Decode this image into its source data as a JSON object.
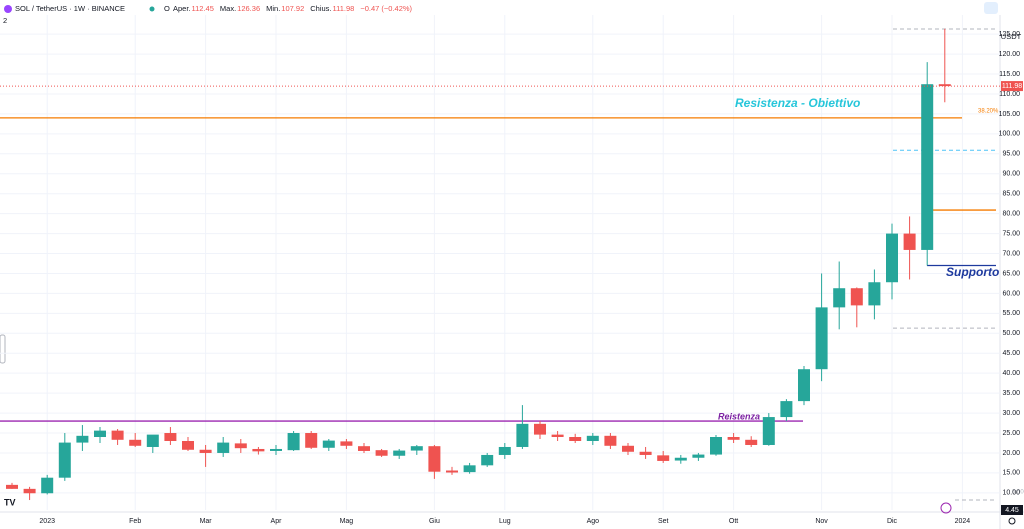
{
  "header": {
    "symbol": "SOL / TetherUS · 1W · BINANCE",
    "o": "O",
    "fields": [
      {
        "label": "Aper.",
        "value": "112.45"
      },
      {
        "label": "Max.",
        "value": "126.36"
      },
      {
        "label": "Min.",
        "value": "107.92"
      },
      {
        "label": "Chius.",
        "value": "111.98"
      }
    ],
    "change": "−0.47 (−0.42%)",
    "currency": "USDT",
    "indicators": "2"
  },
  "chart_data": {
    "type": "candlestick",
    "categories": [
      null,
      null,
      "2023",
      null,
      null,
      null,
      null,
      "Feb",
      null,
      null,
      null,
      "Mar",
      null,
      null,
      null,
      "Apr",
      null,
      null,
      null,
      "Mag",
      null,
      null,
      null,
      null,
      "Giu",
      null,
      null,
      null,
      "Lug",
      null,
      null,
      null,
      null,
      "Ago",
      null,
      null,
      null,
      "Set",
      null,
      null,
      null,
      "Ott",
      null,
      null,
      null,
      null,
      "Nov",
      null,
      null,
      null,
      "Dic",
      null,
      null,
      null,
      "2024"
    ],
    "open": [
      12,
      11,
      9.9,
      13.8,
      22.6,
      24,
      25.6,
      23.3,
      21.5,
      25,
      23,
      20.8,
      20,
      22.4,
      21,
      20.5,
      20.7,
      25,
      21.3,
      22.9,
      21.7,
      20.7,
      19.3,
      20.6,
      21.7,
      15.6,
      15.2,
      16.9,
      19.5,
      21.5,
      27.3,
      24.6,
      24,
      23,
      24.3,
      21.8,
      20.3,
      19.4,
      18.1,
      18.8,
      19.6,
      24,
      23.3,
      22,
      29,
      33,
      41,
      56.5,
      61.3,
      57,
      62.8,
      75,
      70.9,
      112.45,
      null
    ],
    "high": [
      12.5,
      11.5,
      14.5,
      25,
      27,
      26.5,
      26,
      25,
      24.5,
      26.5,
      24,
      22,
      24,
      23.5,
      21.5,
      22,
      25.5,
      25.5,
      23.5,
      23.5,
      22.5,
      21,
      21,
      22,
      22,
      16.5,
      17.5,
      20,
      22.5,
      32,
      28,
      25.5,
      24.8,
      25,
      25,
      22.5,
      21.5,
      20.5,
      19.5,
      20,
      24.5,
      25,
      24.2,
      30,
      33.5,
      41.8,
      65,
      68,
      61.5,
      66,
      77.5,
      79.3,
      118,
      126.36,
      null
    ],
    "low": [
      11,
      8.2,
      9.6,
      13,
      20.5,
      22.5,
      22,
      21.5,
      20,
      22,
      20.5,
      16.5,
      19,
      20,
      19.6,
      19.5,
      20.5,
      21,
      20.5,
      21,
      20,
      19,
      18.5,
      19.5,
      13.5,
      14.5,
      14.8,
      16.5,
      18.5,
      21,
      23.5,
      23,
      22.5,
      22,
      21,
      19.5,
      18.5,
      17.5,
      17.3,
      18,
      19.3,
      22.5,
      21.5,
      21.8,
      28,
      32,
      38,
      51,
      51.5,
      53.5,
      58.5,
      63.5,
      67,
      107.92,
      null
    ],
    "close": [
      11,
      9.9,
      13.8,
      22.6,
      24.3,
      25.6,
      23.3,
      21.8,
      24.6,
      23,
      20.8,
      20,
      22.6,
      21.2,
      20.4,
      21,
      25,
      21.3,
      23.1,
      21.8,
      20.5,
      19.3,
      20.6,
      21.7,
      15.3,
      15.1,
      16.9,
      19.5,
      21.5,
      27.3,
      24.6,
      24,
      23,
      24.3,
      21.8,
      20.3,
      19.5,
      18,
      18.8,
      19.6,
      24,
      23.3,
      22,
      29,
      33,
      41,
      56.5,
      61.3,
      57,
      62.8,
      75,
      70.9,
      112.45,
      111.98,
      null
    ],
    "up_color": "#26a69a",
    "down_color": "#ef5350",
    "ylim": [
      5.7,
      129.8
    ],
    "yticks": [
      {
        "value": 10,
        "label": "10.00"
      },
      {
        "value": 15,
        "label": "15.00"
      },
      {
        "value": 20,
        "label": "20.00"
      },
      {
        "value": 25,
        "label": "25.00"
      },
      {
        "value": 30,
        "label": "30.00"
      },
      {
        "value": 35,
        "label": "35.00"
      },
      {
        "value": 40,
        "label": "40.00"
      },
      {
        "value": 45,
        "label": "45.00"
      },
      {
        "value": 50,
        "label": "50.00"
      },
      {
        "value": 55,
        "label": "55.00"
      },
      {
        "value": 60,
        "label": "60.00"
      },
      {
        "value": 65,
        "label": "65.00"
      },
      {
        "value": 70,
        "label": "70.00"
      },
      {
        "value": 75,
        "label": "75.00"
      },
      {
        "value": 80,
        "label": "80.00"
      },
      {
        "value": 85,
        "label": "85.00"
      },
      {
        "value": 90,
        "label": "90.00"
      },
      {
        "value": 95,
        "label": "95.00"
      },
      {
        "value": 100,
        "label": "100.00"
      },
      {
        "value": 105,
        "label": "105.00"
      },
      {
        "value": 110,
        "label": "110.00"
      },
      {
        "value": 115,
        "label": "115.00"
      },
      {
        "value": 120,
        "label": "120.00"
      },
      {
        "value": 125,
        "label": "125.00"
      }
    ],
    "grid": true,
    "last_price": {
      "value": 111.98,
      "label": "111.98",
      "color": "#ef5350"
    },
    "bottom_label": "4.45",
    "levels": [
      {
        "value": 126.3,
        "color": "#b2b5be",
        "style": "dashed"
      },
      {
        "value": 104,
        "color": "#f57c00",
        "style": "solid",
        "label": "38.20%"
      },
      {
        "value": 95.9,
        "color": "#4fc3f7",
        "style": "dashed"
      },
      {
        "value": 80.9,
        "color": "#f57c00",
        "style": "solid"
      },
      {
        "value": 67,
        "color": "#1e3a9e",
        "style": "solid"
      },
      {
        "value": 51.3,
        "color": "#b2b5be",
        "style": "dashed"
      },
      {
        "value": 28,
        "color": "#9c27b0",
        "style": "solid"
      },
      {
        "value": 8.2,
        "color": "#b2b5be",
        "style": "dashed",
        "label": "0.000"
      }
    ],
    "annotations": [
      {
        "text": "Resistenza - Obiettivo",
        "color": "#26c6da"
      },
      {
        "text": "Supporto",
        "color": "#1e3a9e"
      },
      {
        "text": "Reistenza",
        "color": "#7b1fa2"
      }
    ]
  }
}
